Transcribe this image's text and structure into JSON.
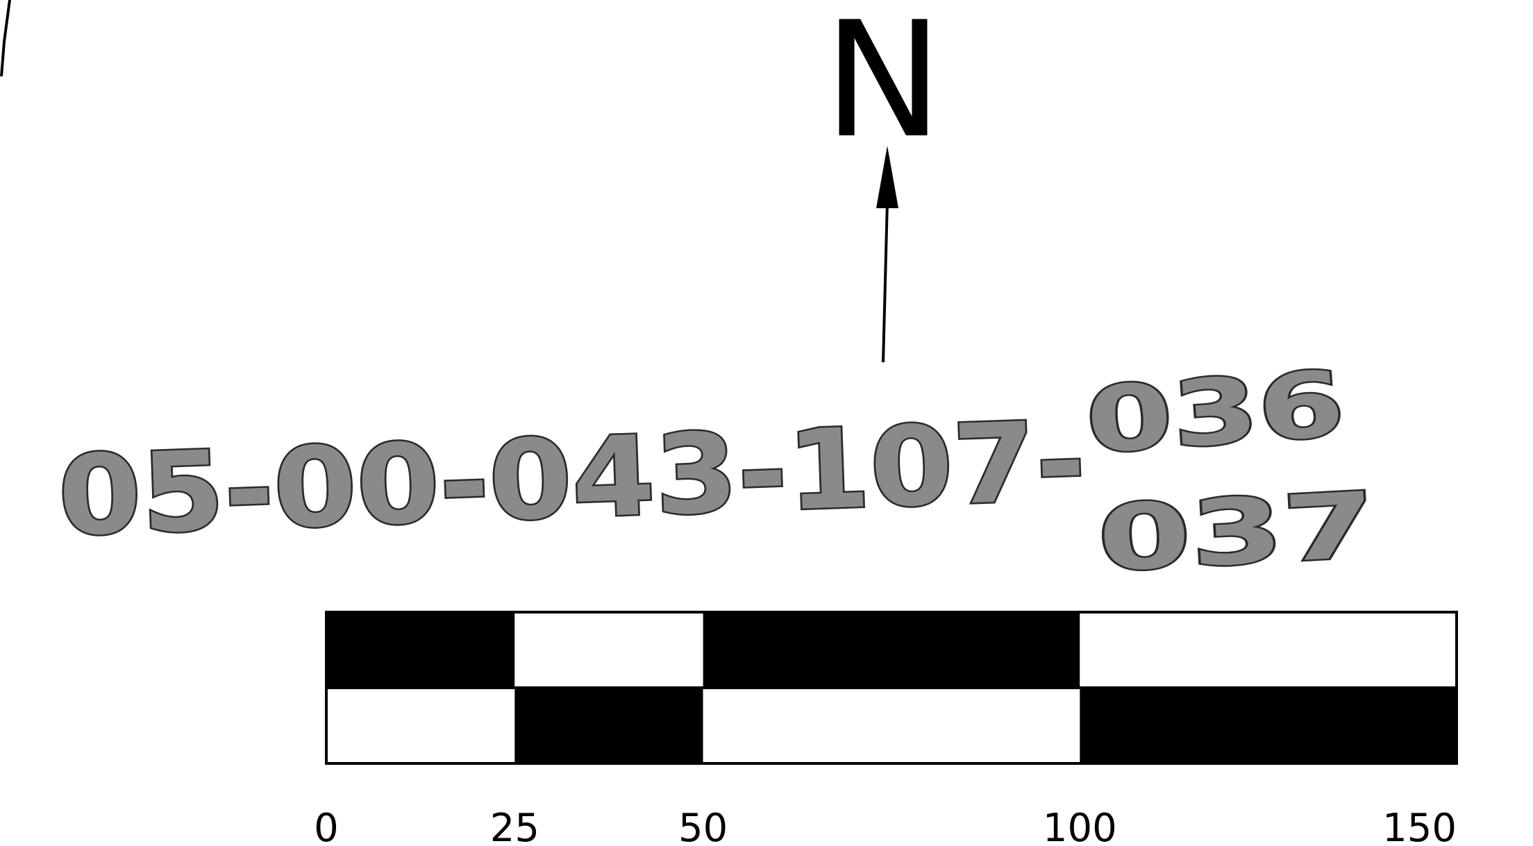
{
  "north_arrow": {
    "label": "N"
  },
  "parcel_number": {
    "main": "05-00-043-107-",
    "suffix_top": "036",
    "suffix_bottom": "037"
  },
  "scale_bar": {
    "ticks": [
      "0",
      "25",
      "50",
      "100",
      "150"
    ],
    "tick_values": [
      0,
      25,
      50,
      100,
      150
    ],
    "max": 150,
    "colors": {
      "dark": "#000000",
      "light": "#ffffff"
    }
  }
}
